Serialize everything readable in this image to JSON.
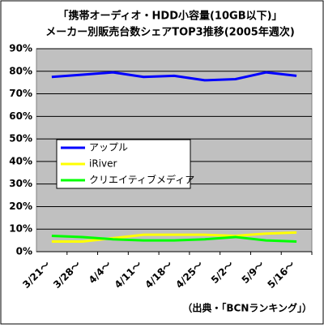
{
  "chart_data": {
    "type": "line",
    "title": [
      "「携帯オーディオ・HDD小容量(10GB以下)」",
      "メーカー別販売台数シェアTOP3推移(2005年週次)"
    ],
    "categories": [
      "3/21～",
      "3/28～",
      "4/4～",
      "4/11～",
      "4/18～",
      "4/25～",
      "5/2～",
      "5/9～",
      "5/16～"
    ],
    "series": [
      {
        "name": "アップル",
        "color": "#0000ff",
        "values": [
          77.5,
          78.5,
          79.5,
          77.5,
          78,
          76,
          76.5,
          79.5,
          78
        ]
      },
      {
        "name": "iRiver",
        "color": "#ffff00",
        "values": [
          4.5,
          4.5,
          6,
          7.5,
          7.5,
          7.5,
          7,
          8,
          8.5
        ]
      },
      {
        "name": "クリエイティブメディア",
        "color": "#00ff00",
        "values": [
          7,
          6.5,
          5.5,
          5,
          5,
          5.5,
          6.5,
          5,
          4.5
        ]
      }
    ],
    "ylim": [
      0,
      90
    ],
    "yticks": [
      {
        "value": 0,
        "label": "0%"
      },
      {
        "value": 10,
        "label": "10%"
      },
      {
        "value": 20,
        "label": "20%"
      },
      {
        "value": 30,
        "label": "30%"
      },
      {
        "value": 40,
        "label": "40%"
      },
      {
        "value": 50,
        "label": "50%"
      },
      {
        "value": 60,
        "label": "60%"
      },
      {
        "value": 70,
        "label": "70%"
      },
      {
        "value": 80,
        "label": "80%"
      },
      {
        "value": 90,
        "label": "90%"
      }
    ],
    "grid": true,
    "source": "（出典・「BCNランキング」）"
  }
}
